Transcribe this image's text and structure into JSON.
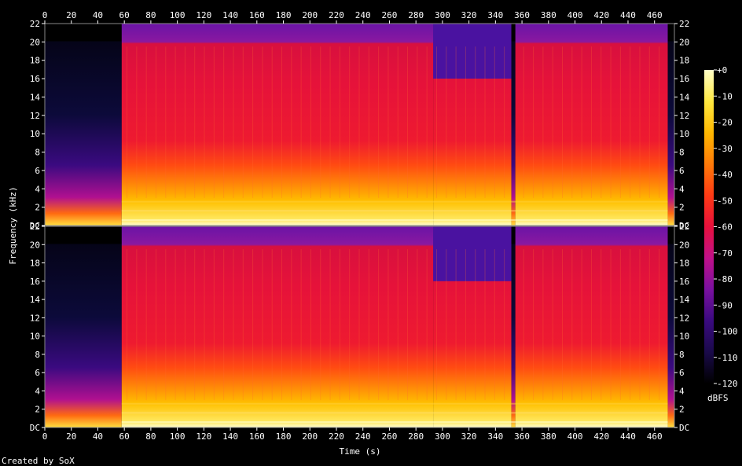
{
  "chart_data": {
    "type": "heatmap",
    "title": "",
    "xlabel": "Time (s)",
    "ylabel": "Frequency (kHz)",
    "xlim": [
      0,
      475
    ],
    "ylim": [
      0,
      22
    ],
    "x_ticks": [
      "0",
      "20",
      "40",
      "60",
      "80",
      "100",
      "120",
      "140",
      "160",
      "180",
      "200",
      "220",
      "240",
      "260",
      "280",
      "300",
      "320",
      "340",
      "360",
      "380",
      "400",
      "420",
      "440",
      "460"
    ],
    "y_ticks": [
      "DC",
      "2",
      "4",
      "6",
      "8",
      "10",
      "12",
      "14",
      "16",
      "18",
      "20",
      "22"
    ],
    "channels": 2,
    "colorbar": {
      "label": "dBFS",
      "ticks": [
        "+0",
        "-10",
        "-20",
        "-30",
        "-40",
        "-50",
        "-60",
        "-70",
        "-80",
        "-90",
        "-100",
        "-110",
        "-120"
      ],
      "range": [
        -120,
        0
      ],
      "colors": [
        "#000000",
        "#1a0a4a",
        "#3a0a80",
        "#7a10a0",
        "#c0108a",
        "#e8103c",
        "#ff3a14",
        "#ff7a08",
        "#ffb800",
        "#ffe840",
        "#ffffc8"
      ]
    },
    "segments": [
      {
        "start": 0,
        "end": 58,
        "level_db": -108,
        "hf_cutoff_khz": 20
      },
      {
        "start": 58,
        "end": 293,
        "level_db": -55,
        "hf_cutoff_khz": 20
      },
      {
        "start": 293,
        "end": 352,
        "level_db": -58,
        "hf_cutoff_khz": 16
      },
      {
        "start": 352,
        "end": 355,
        "level_db": -95,
        "hf_cutoff_khz": 20
      },
      {
        "start": 355,
        "end": 470,
        "level_db": -55,
        "hf_cutoff_khz": 20
      },
      {
        "start": 470,
        "end": 475,
        "level_db": -105,
        "hf_cutoff_khz": 20
      }
    ]
  },
  "footer": {
    "credit": "Created by SoX"
  }
}
